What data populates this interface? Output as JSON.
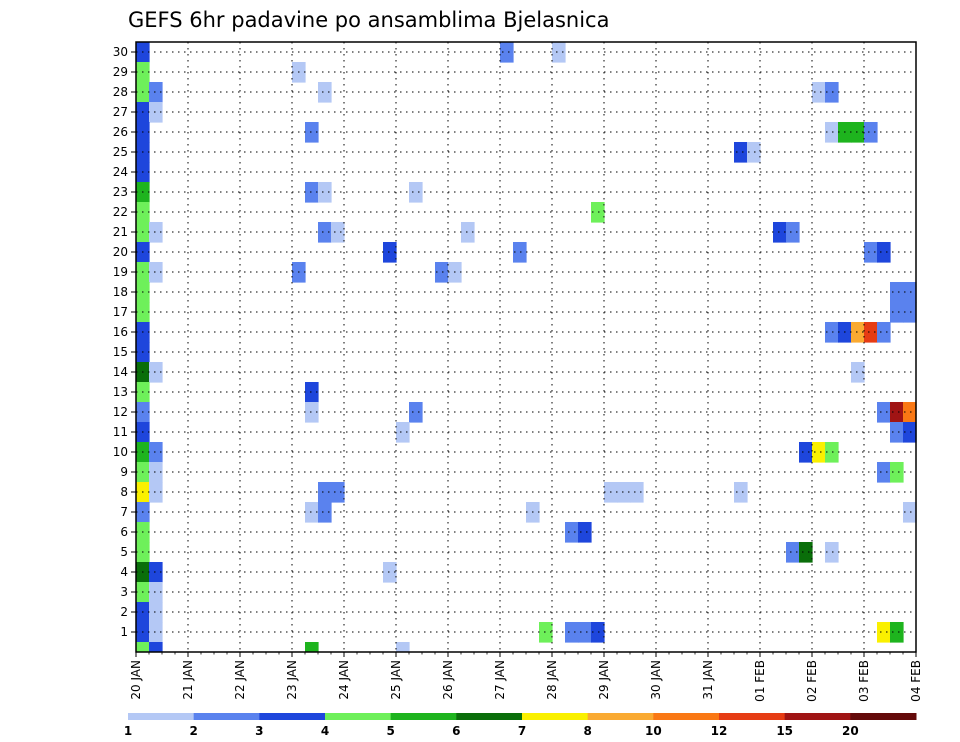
{
  "chart_data": {
    "type": "heatmap",
    "title": "GEFS 6hr padavine po ansamblima Bjelasnica",
    "xlabel": "",
    "ylabel": "",
    "x_tick_labels": [
      "20 JAN",
      "21 JAN",
      "22 JAN",
      "23 JAN",
      "24 JAN",
      "25 JAN",
      "26 JAN",
      "27 JAN",
      "28 JAN",
      "29 JAN",
      "30 JAN",
      "31 JAN",
      "01 FEB",
      "02 FEB",
      "03 FEB",
      "04 FEB"
    ],
    "y_tick_labels": [
      "1",
      "2",
      "3",
      "4",
      "5",
      "6",
      "7",
      "8",
      "9",
      "10",
      "11",
      "12",
      "13",
      "14",
      "15",
      "16",
      "17",
      "18",
      "19",
      "20",
      "21",
      "22",
      "23",
      "24",
      "25",
      "26",
      "27",
      "28",
      "29",
      "30"
    ],
    "xlim_days": [
      0,
      15
    ],
    "ylim_members": [
      0,
      30
    ],
    "steps_per_day": 4,
    "grid": true,
    "colorbar": {
      "labels": [
        "1",
        "2",
        "3",
        "4",
        "5",
        "6",
        "7",
        "8",
        "10",
        "12",
        "15",
        "20"
      ],
      "colors": [
        "#b4c8f5",
        "#5a82ee",
        "#1e46dc",
        "#6ef05a",
        "#1eb41e",
        "#0a6e0a",
        "#faf000",
        "#faaa32",
        "#fa7814",
        "#e63c14",
        "#a01414",
        "#640a0a"
      ]
    },
    "cells": [
      {
        "m": 30,
        "s": 0,
        "c": 3
      },
      {
        "m": 30,
        "s": 28,
        "c": 2
      },
      {
        "m": 30,
        "s": 32,
        "c": 1
      },
      {
        "m": 29,
        "s": 0,
        "c": 4
      },
      {
        "m": 29,
        "s": 12,
        "c": 1
      },
      {
        "m": 28,
        "s": 0,
        "c": 4
      },
      {
        "m": 28,
        "s": 1,
        "c": 2
      },
      {
        "m": 28,
        "s": 14,
        "c": 1
      },
      {
        "m": 28,
        "s": 52,
        "c": 1
      },
      {
        "m": 28,
        "s": 53,
        "c": 2
      },
      {
        "m": 27,
        "s": 0,
        "c": 3
      },
      {
        "m": 27,
        "s": 1,
        "c": 1
      },
      {
        "m": 26,
        "s": 0,
        "c": 3
      },
      {
        "m": 26,
        "s": 13,
        "c": 2
      },
      {
        "m": 26,
        "s": 53,
        "c": 1
      },
      {
        "m": 26,
        "s": 54,
        "c": 5
      },
      {
        "m": 26,
        "s": 55,
        "c": 5
      },
      {
        "m": 26,
        "s": 56,
        "c": 2
      },
      {
        "m": 25,
        "s": 0,
        "c": 3
      },
      {
        "m": 25,
        "s": 46,
        "c": 3
      },
      {
        "m": 25,
        "s": 47,
        "c": 1
      },
      {
        "m": 24,
        "s": 0,
        "c": 3
      },
      {
        "m": 23,
        "s": 0,
        "c": 5
      },
      {
        "m": 23,
        "s": 13,
        "c": 2
      },
      {
        "m": 23,
        "s": 14,
        "c": 1
      },
      {
        "m": 23,
        "s": 21,
        "c": 1
      },
      {
        "m": 22,
        "s": 0,
        "c": 4
      },
      {
        "m": 22,
        "s": 35,
        "c": 4
      },
      {
        "m": 21,
        "s": 0,
        "c": 4
      },
      {
        "m": 21,
        "s": 1,
        "c": 1
      },
      {
        "m": 21,
        "s": 14,
        "c": 2
      },
      {
        "m": 21,
        "s": 15,
        "c": 1
      },
      {
        "m": 21,
        "s": 25,
        "c": 1
      },
      {
        "m": 21,
        "s": 49,
        "c": 3
      },
      {
        "m": 21,
        "s": 50,
        "c": 2
      },
      {
        "m": 20,
        "s": 0,
        "c": 3
      },
      {
        "m": 20,
        "s": 19,
        "c": 3
      },
      {
        "m": 20,
        "s": 29,
        "c": 2
      },
      {
        "m": 20,
        "s": 56,
        "c": 2
      },
      {
        "m": 20,
        "s": 57,
        "c": 3
      },
      {
        "m": 19,
        "s": 0,
        "c": 4
      },
      {
        "m": 19,
        "s": 1,
        "c": 1
      },
      {
        "m": 19,
        "s": 12,
        "c": 2
      },
      {
        "m": 19,
        "s": 23,
        "c": 2
      },
      {
        "m": 19,
        "s": 24,
        "c": 1
      },
      {
        "m": 18,
        "s": 0,
        "c": 4
      },
      {
        "m": 18,
        "s": 58,
        "c": 2
      },
      {
        "m": 18,
        "s": 59,
        "c": 2
      },
      {
        "m": 17,
        "s": 0,
        "c": 4
      },
      {
        "m": 17,
        "s": 58,
        "c": 2
      },
      {
        "m": 17,
        "s": 59,
        "c": 2
      },
      {
        "m": 16,
        "s": 0,
        "c": 3
      },
      {
        "m": 16,
        "s": 53,
        "c": 2
      },
      {
        "m": 16,
        "s": 54,
        "c": 3
      },
      {
        "m": 16,
        "s": 55,
        "c": 8
      },
      {
        "m": 16,
        "s": 56,
        "c": 10
      },
      {
        "m": 16,
        "s": 57,
        "c": 2
      },
      {
        "m": 15,
        "s": 0,
        "c": 3
      },
      {
        "m": 14,
        "s": 0,
        "c": 6
      },
      {
        "m": 14,
        "s": 1,
        "c": 1
      },
      {
        "m": 14,
        "s": 55,
        "c": 1
      },
      {
        "m": 13,
        "s": 0,
        "c": 4
      },
      {
        "m": 13,
        "s": 13,
        "c": 3
      },
      {
        "m": 12,
        "s": 0,
        "c": 2
      },
      {
        "m": 12,
        "s": 13,
        "c": 1
      },
      {
        "m": 12,
        "s": 21,
        "c": 2
      },
      {
        "m": 12,
        "s": 57,
        "c": 2
      },
      {
        "m": 12,
        "s": 58,
        "c": 11
      },
      {
        "m": 12,
        "s": 59,
        "c": 9
      },
      {
        "m": 11,
        "s": 0,
        "c": 3
      },
      {
        "m": 11,
        "s": 20,
        "c": 1
      },
      {
        "m": 11,
        "s": 58,
        "c": 2
      },
      {
        "m": 11,
        "s": 59,
        "c": 3
      },
      {
        "m": 10,
        "s": 0,
        "c": 5
      },
      {
        "m": 10,
        "s": 1,
        "c": 2
      },
      {
        "m": 10,
        "s": 51,
        "c": 3
      },
      {
        "m": 10,
        "s": 52,
        "c": 7
      },
      {
        "m": 10,
        "s": 53,
        "c": 4
      },
      {
        "m": 9,
        "s": 0,
        "c": 4
      },
      {
        "m": 9,
        "s": 1,
        "c": 1
      },
      {
        "m": 9,
        "s": 57,
        "c": 2
      },
      {
        "m": 9,
        "s": 58,
        "c": 4
      },
      {
        "m": 8,
        "s": 0,
        "c": 7
      },
      {
        "m": 8,
        "s": 1,
        "c": 1
      },
      {
        "m": 8,
        "s": 14,
        "c": 2
      },
      {
        "m": 8,
        "s": 15,
        "c": 2
      },
      {
        "m": 8,
        "s": 36,
        "c": 1
      },
      {
        "m": 8,
        "s": 37,
        "c": 1
      },
      {
        "m": 8,
        "s": 38,
        "c": 1
      },
      {
        "m": 8,
        "s": 46,
        "c": 1
      },
      {
        "m": 7,
        "s": 0,
        "c": 2
      },
      {
        "m": 7,
        "s": 13,
        "c": 1
      },
      {
        "m": 7,
        "s": 14,
        "c": 2
      },
      {
        "m": 7,
        "s": 30,
        "c": 1
      },
      {
        "m": 7,
        "s": 59,
        "c": 1
      },
      {
        "m": 6,
        "s": 0,
        "c": 4
      },
      {
        "m": 6,
        "s": 33,
        "c": 2
      },
      {
        "m": 6,
        "s": 34,
        "c": 3
      },
      {
        "m": 5,
        "s": 0,
        "c": 4
      },
      {
        "m": 5,
        "s": 50,
        "c": 2
      },
      {
        "m": 5,
        "s": 51,
        "c": 6
      },
      {
        "m": 5,
        "s": 53,
        "c": 1
      },
      {
        "m": 4,
        "s": 0,
        "c": 6
      },
      {
        "m": 4,
        "s": 1,
        "c": 3
      },
      {
        "m": 4,
        "s": 19,
        "c": 1
      },
      {
        "m": 3,
        "s": 0,
        "c": 4
      },
      {
        "m": 3,
        "s": 1,
        "c": 1
      },
      {
        "m": 2,
        "s": 0,
        "c": 3
      },
      {
        "m": 2,
        "s": 1,
        "c": 1
      },
      {
        "m": 1,
        "s": 0,
        "c": 3
      },
      {
        "m": 1,
        "s": 1,
        "c": 1
      },
      {
        "m": 1,
        "s": 31,
        "c": 4
      },
      {
        "m": 1,
        "s": 33,
        "c": 2
      },
      {
        "m": 1,
        "s": 34,
        "c": 2
      },
      {
        "m": 1,
        "s": 35,
        "c": 3
      },
      {
        "m": 1,
        "s": 57,
        "c": 7
      },
      {
        "m": 1,
        "s": 58,
        "c": 5
      },
      {
        "m": 0,
        "s": 0,
        "c": 4
      },
      {
        "m": 0,
        "s": 1,
        "c": 3
      },
      {
        "m": 0,
        "s": 13,
        "c": 5
      },
      {
        "m": 0,
        "s": 20,
        "c": 1
      }
    ]
  }
}
